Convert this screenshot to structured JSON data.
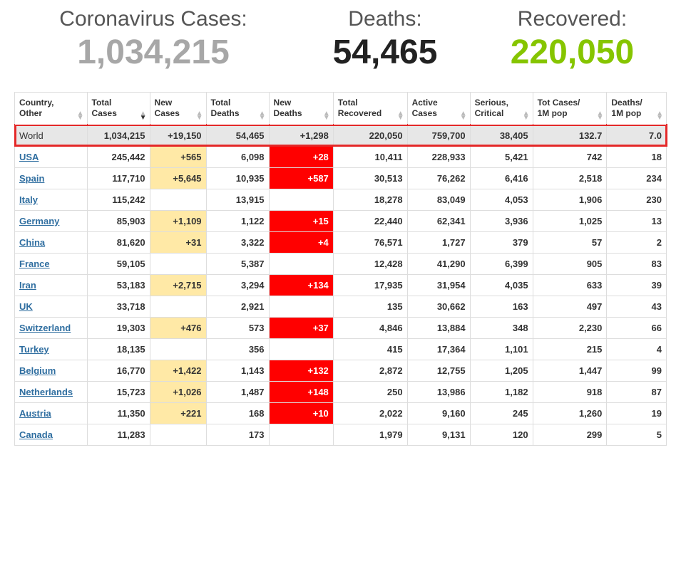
{
  "stats": {
    "cases": {
      "label": "Coronavirus Cases:",
      "value": "1,034,215"
    },
    "deaths": {
      "label": "Deaths:",
      "value": "54,465"
    },
    "recovered": {
      "label": "Recovered:",
      "value": "220,050"
    }
  },
  "colors": {
    "cases_value": "#a7a7a7",
    "deaths_value": "#222222",
    "recovered_value": "#86c500",
    "world_row_outline": "#e42828",
    "world_row_bg": "#e7e7e7",
    "new_cases_bg": "#ffe9a6",
    "new_deaths_bg": "#ff0000",
    "new_deaths_fg": "#ffffff",
    "link": "#2f6ea0",
    "border": "#dddddd"
  },
  "table": {
    "sort_column_index": 1,
    "sort_direction": "desc",
    "columns": [
      "Country,\nOther",
      "Total\nCases",
      "New\nCases",
      "Total\nDeaths",
      "New\nDeaths",
      "Total\nRecovered",
      "Active\nCases",
      "Serious,\nCritical",
      "Tot Cases/\n1M pop",
      "Deaths/\n1M pop"
    ],
    "world_row": {
      "country": "World",
      "total_cases": "1,034,215",
      "new_cases": "+19,150",
      "total_deaths": "54,465",
      "new_deaths": "+1,298",
      "total_recovered": "220,050",
      "active_cases": "759,700",
      "serious_critical": "38,405",
      "cases_per_1m": "132.7",
      "deaths_per_1m": "7.0"
    },
    "rows": [
      {
        "country": "USA",
        "total_cases": "245,442",
        "new_cases": "+565",
        "total_deaths": "6,098",
        "new_deaths": "+28",
        "total_recovered": "10,411",
        "active_cases": "228,933",
        "serious_critical": "5,421",
        "cases_per_1m": "742",
        "deaths_per_1m": "18"
      },
      {
        "country": "Spain",
        "total_cases": "117,710",
        "new_cases": "+5,645",
        "total_deaths": "10,935",
        "new_deaths": "+587",
        "total_recovered": "30,513",
        "active_cases": "76,262",
        "serious_critical": "6,416",
        "cases_per_1m": "2,518",
        "deaths_per_1m": "234"
      },
      {
        "country": "Italy",
        "total_cases": "115,242",
        "new_cases": "",
        "total_deaths": "13,915",
        "new_deaths": "",
        "total_recovered": "18,278",
        "active_cases": "83,049",
        "serious_critical": "4,053",
        "cases_per_1m": "1,906",
        "deaths_per_1m": "230"
      },
      {
        "country": "Germany",
        "total_cases": "85,903",
        "new_cases": "+1,109",
        "total_deaths": "1,122",
        "new_deaths": "+15",
        "total_recovered": "22,440",
        "active_cases": "62,341",
        "serious_critical": "3,936",
        "cases_per_1m": "1,025",
        "deaths_per_1m": "13"
      },
      {
        "country": "China",
        "total_cases": "81,620",
        "new_cases": "+31",
        "total_deaths": "3,322",
        "new_deaths": "+4",
        "total_recovered": "76,571",
        "active_cases": "1,727",
        "serious_critical": "379",
        "cases_per_1m": "57",
        "deaths_per_1m": "2"
      },
      {
        "country": "France",
        "total_cases": "59,105",
        "new_cases": "",
        "total_deaths": "5,387",
        "new_deaths": "",
        "total_recovered": "12,428",
        "active_cases": "41,290",
        "serious_critical": "6,399",
        "cases_per_1m": "905",
        "deaths_per_1m": "83"
      },
      {
        "country": "Iran",
        "total_cases": "53,183",
        "new_cases": "+2,715",
        "total_deaths": "3,294",
        "new_deaths": "+134",
        "total_recovered": "17,935",
        "active_cases": "31,954",
        "serious_critical": "4,035",
        "cases_per_1m": "633",
        "deaths_per_1m": "39"
      },
      {
        "country": "UK",
        "total_cases": "33,718",
        "new_cases": "",
        "total_deaths": "2,921",
        "new_deaths": "",
        "total_recovered": "135",
        "active_cases": "30,662",
        "serious_critical": "163",
        "cases_per_1m": "497",
        "deaths_per_1m": "43"
      },
      {
        "country": "Switzerland",
        "total_cases": "19,303",
        "new_cases": "+476",
        "total_deaths": "573",
        "new_deaths": "+37",
        "total_recovered": "4,846",
        "active_cases": "13,884",
        "serious_critical": "348",
        "cases_per_1m": "2,230",
        "deaths_per_1m": "66"
      },
      {
        "country": "Turkey",
        "total_cases": "18,135",
        "new_cases": "",
        "total_deaths": "356",
        "new_deaths": "",
        "total_recovered": "415",
        "active_cases": "17,364",
        "serious_critical": "1,101",
        "cases_per_1m": "215",
        "deaths_per_1m": "4"
      },
      {
        "country": "Belgium",
        "total_cases": "16,770",
        "new_cases": "+1,422",
        "total_deaths": "1,143",
        "new_deaths": "+132",
        "total_recovered": "2,872",
        "active_cases": "12,755",
        "serious_critical": "1,205",
        "cases_per_1m": "1,447",
        "deaths_per_1m": "99"
      },
      {
        "country": "Netherlands",
        "total_cases": "15,723",
        "new_cases": "+1,026",
        "total_deaths": "1,487",
        "new_deaths": "+148",
        "total_recovered": "250",
        "active_cases": "13,986",
        "serious_critical": "1,182",
        "cases_per_1m": "918",
        "deaths_per_1m": "87"
      },
      {
        "country": "Austria",
        "total_cases": "11,350",
        "new_cases": "+221",
        "total_deaths": "168",
        "new_deaths": "+10",
        "total_recovered": "2,022",
        "active_cases": "9,160",
        "serious_critical": "245",
        "cases_per_1m": "1,260",
        "deaths_per_1m": "19"
      },
      {
        "country": "Canada",
        "total_cases": "11,283",
        "new_cases": "",
        "total_deaths": "173",
        "new_deaths": "",
        "total_recovered": "1,979",
        "active_cases": "9,131",
        "serious_critical": "120",
        "cases_per_1m": "299",
        "deaths_per_1m": "5"
      }
    ]
  }
}
